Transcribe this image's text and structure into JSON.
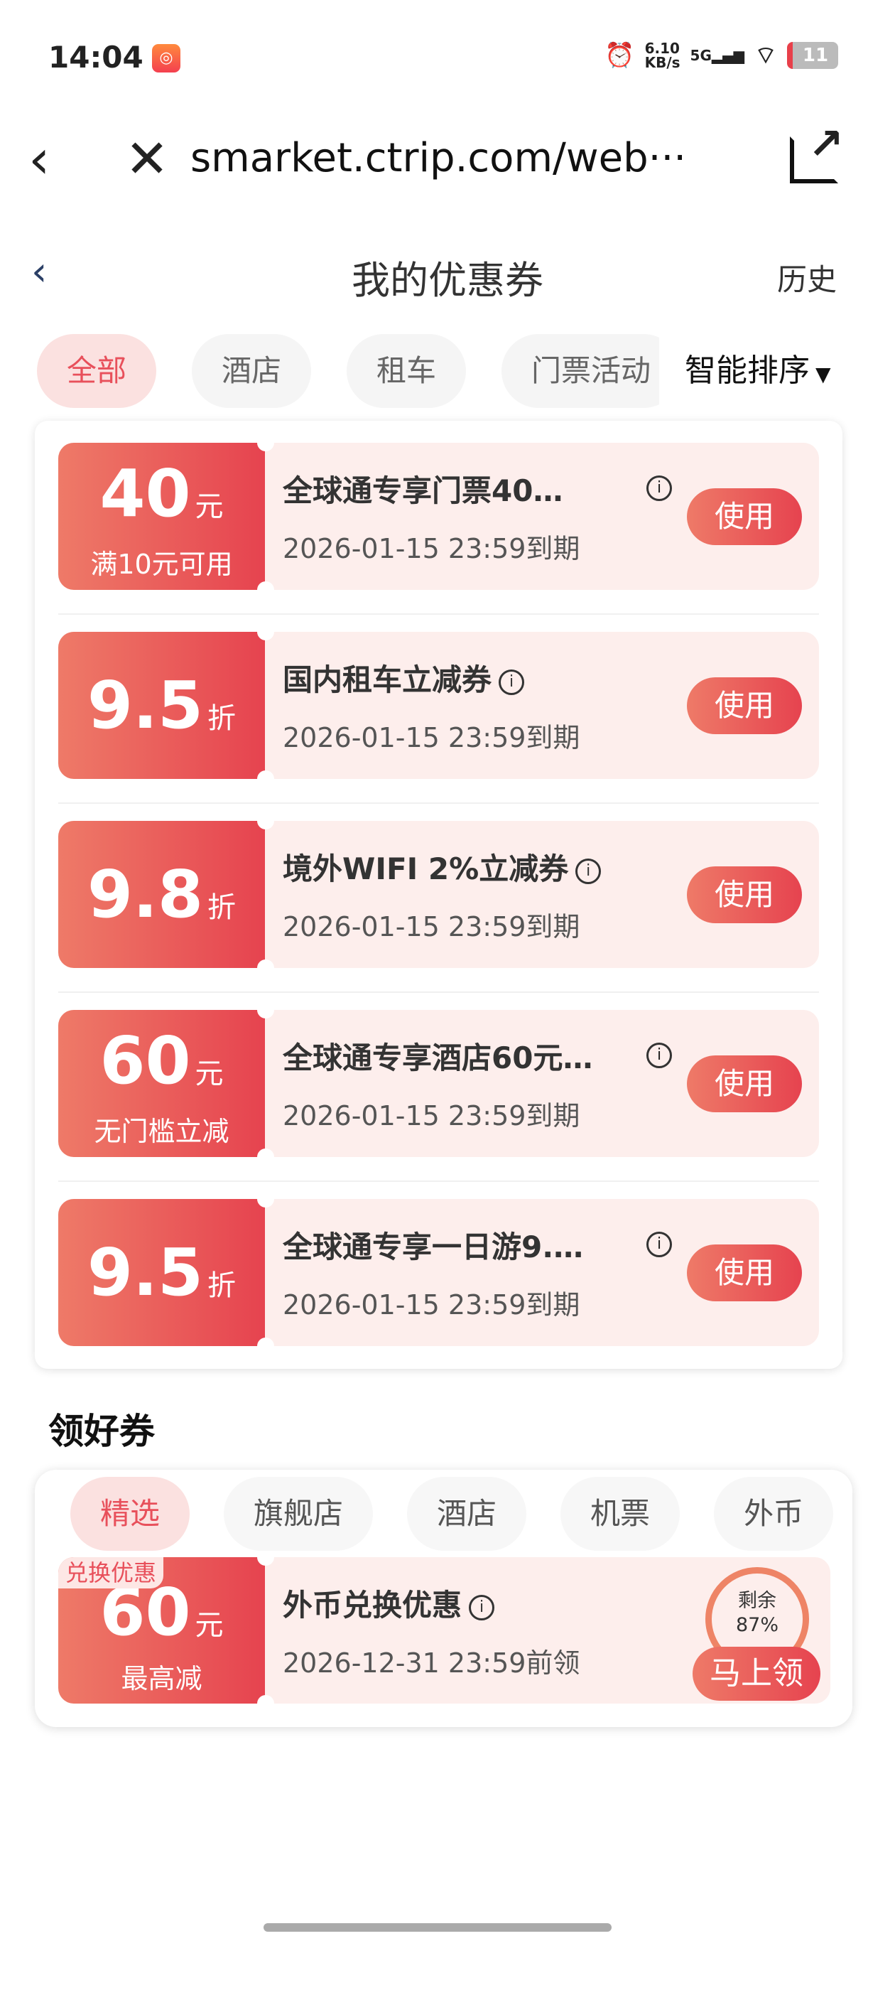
{
  "status_bar": {
    "time": "14:04",
    "app_icon": "kuaishou-icon",
    "net_speed": "6.10",
    "net_unit": "KB/s",
    "network": "5G",
    "battery": "11"
  },
  "browser": {
    "url": "smarket.ctrip.com/web···"
  },
  "header": {
    "title": "我的优惠券",
    "history": "历史"
  },
  "tabs": [
    {
      "label": "全部",
      "active": true
    },
    {
      "label": "酒店"
    },
    {
      "label": "租车"
    },
    {
      "label": "门票活动"
    }
  ],
  "sort": {
    "label": "智能排序"
  },
  "coupons": [
    {
      "amount": "40",
      "unit": "元",
      "condition": "满10元可用",
      "title": "全球通专享门票40…",
      "expiry": "2026-01-15 23:59到期",
      "button": "使用"
    },
    {
      "amount": "9.5",
      "unit": "折",
      "condition": "",
      "title": "国内租车立减券",
      "expiry": "2026-01-15 23:59到期",
      "button": "使用"
    },
    {
      "amount": "9.8",
      "unit": "折",
      "condition": "",
      "title": "境外WIFI 2%立减券",
      "expiry": "2026-01-15 23:59到期",
      "button": "使用"
    },
    {
      "amount": "60",
      "unit": "元",
      "condition": "无门槛立减",
      "title": "全球通专享酒店60元…",
      "expiry": "2026-01-15 23:59到期",
      "button": "使用"
    },
    {
      "amount": "9.5",
      "unit": "折",
      "condition": "",
      "title": "全球通专享一日游9.…",
      "expiry": "2026-01-15 23:59到期",
      "button": "使用"
    }
  ],
  "good_coupons": {
    "title": "领好券",
    "tabs": [
      {
        "label": "精选",
        "active": true
      },
      {
        "label": "旗舰店"
      },
      {
        "label": "酒店"
      },
      {
        "label": "机票"
      },
      {
        "label": "外币"
      }
    ],
    "coupon": {
      "tag": "兑换优惠",
      "amount": "60",
      "unit": "元",
      "condition": "最高减",
      "title": "外币兑换优惠",
      "expiry": "2026-12-31 23:59前领",
      "remaining_label": "剩余",
      "remaining": "87%",
      "button": "马上领"
    }
  },
  "colors": {
    "accent": "#e6434f",
    "accent_light": "#ee7a68",
    "coupon_bg": "#fdeeec",
    "tab_active_bg": "#fbe1e0"
  }
}
